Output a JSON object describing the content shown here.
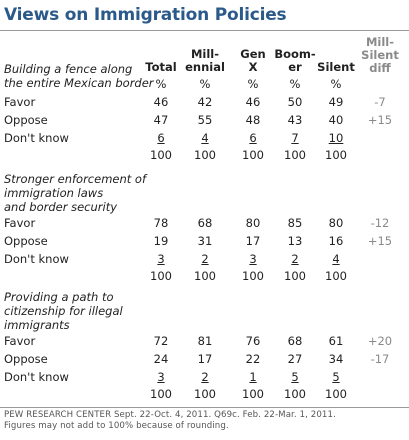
{
  "chart_data": {
    "type": "table",
    "title": "Views on Immigration Policies",
    "columns": [
      "Total",
      "Mill-\nennial",
      "Gen\nX",
      "Boom-\ner",
      "Silent",
      "Mill-\nSilent\ndiff"
    ],
    "pct_row": [
      "%",
      "%",
      "%",
      "%",
      "%"
    ],
    "sections": [
      {
        "question": "Building a fence along\nthe entire Mexican border",
        "rows": [
          {
            "label": "Favor",
            "values": [
              "46",
              "42",
              "46",
              "50",
              "49"
            ],
            "diff": "-7"
          },
          {
            "label": "Oppose",
            "values": [
              "47",
              "55",
              "48",
              "43",
              "40"
            ],
            "diff": "+15"
          },
          {
            "label": "Don't know",
            "values": [
              "6",
              "4",
              "6",
              "7",
              "10"
            ],
            "diff": ""
          }
        ],
        "totals": [
          "100",
          "100",
          "100",
          "100",
          "100"
        ]
      },
      {
        "question": "Stronger enforcement of\nimmigration laws\nand border security",
        "rows": [
          {
            "label": "Favor",
            "values": [
              "78",
              "68",
              "80",
              "85",
              "80"
            ],
            "diff": "-12"
          },
          {
            "label": "Oppose",
            "values": [
              "19",
              "31",
              "17",
              "13",
              "16"
            ],
            "diff": "+15"
          },
          {
            "label": "Don't know",
            "values": [
              "3",
              "2",
              "3",
              "2",
              "4"
            ],
            "diff": ""
          }
        ],
        "totals": [
          "100",
          "100",
          "100",
          "100",
          "100"
        ]
      },
      {
        "question": "Providing a path to\ncitizenship for illegal\nimmigrants",
        "rows": [
          {
            "label": "Favor",
            "values": [
              "72",
              "81",
              "76",
              "68",
              "61"
            ],
            "diff": "+20"
          },
          {
            "label": "Oppose",
            "values": [
              "24",
              "17",
              "22",
              "27",
              "34"
            ],
            "diff": "-17"
          },
          {
            "label": "Don't know",
            "values": [
              "3",
              "2",
              "1",
              "5",
              "5"
            ],
            "diff": ""
          }
        ],
        "totals": [
          "100",
          "100",
          "100",
          "100",
          "100"
        ]
      }
    ],
    "footer": [
      "PEW RESEARCH CENTER  Sept. 22-Oct. 4, 2011. Q69c. Feb. 22-Mar. 1, 2011.",
      "Figures may not add to 100% because of rounding."
    ]
  }
}
